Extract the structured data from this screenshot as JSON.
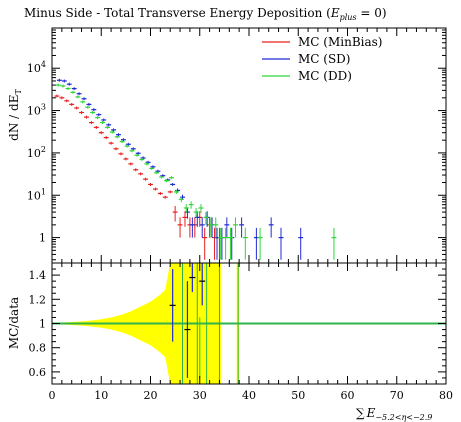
{
  "chart_data": {
    "type": "scatter",
    "title_prefix": "Minus Side - Total Transverse Energy Deposition (",
    "title_math_E": "E",
    "title_math_sub": "plus",
    "title_math_suffix": " = 0)",
    "xlabel_sym": "∑",
    "xlabel_E": "E",
    "xlabel_sub": "−5.2<η<−2.9",
    "top_ylabel": "dN / dE",
    "top_ylabel_sub": "T",
    "bottom_ylabel": "MC/data",
    "xlim": [
      0,
      80
    ],
    "top_ylim_log10": [
      -0.6,
      4.95
    ],
    "top_yscale": "log",
    "bottom_ylim": [
      0.5,
      1.5
    ],
    "x_tick_labels": [
      "0",
      "10",
      "20",
      "30",
      "40",
      "50",
      "60",
      "70",
      "80"
    ],
    "top_y_tick_labels": [
      {
        "value": 1,
        "label": "1"
      },
      {
        "value": 10,
        "label": "10",
        "sup": "1"
      },
      {
        "value": 100,
        "label": "10",
        "sup": "2"
      },
      {
        "value": 1000,
        "label": "10",
        "sup": "3"
      },
      {
        "value": 10000,
        "label": "10",
        "sup": "4"
      }
    ],
    "bottom_y_tick_labels": [
      "0.6",
      "0.8",
      "1",
      "1.2",
      "1.4"
    ],
    "legend_position": "top-right",
    "series": [
      {
        "name": "MC (MinBias)",
        "color": "#e8211f",
        "points": [
          [
            1,
            2200
          ],
          [
            2,
            2000
          ],
          [
            3,
            1700
          ],
          [
            4,
            1400
          ],
          [
            5,
            1150
          ],
          [
            6,
            900
          ],
          [
            7,
            700
          ],
          [
            8,
            520
          ],
          [
            9,
            400
          ],
          [
            10,
            300
          ],
          [
            11,
            230
          ],
          [
            12,
            170
          ],
          [
            13,
            125
          ],
          [
            14,
            95
          ],
          [
            15,
            72
          ],
          [
            16,
            55
          ],
          [
            17,
            40
          ],
          [
            18,
            32
          ],
          [
            19,
            24
          ],
          [
            20,
            18
          ],
          [
            21,
            14
          ],
          [
            22,
            11
          ],
          [
            23,
            9
          ],
          [
            24,
            12
          ],
          [
            25,
            4
          ],
          [
            26,
            2
          ],
          [
            27,
            3
          ],
          [
            28,
            2
          ],
          [
            29,
            2
          ],
          [
            30,
            3
          ],
          [
            31,
            1
          ],
          [
            32,
            2
          ],
          [
            33,
            1
          ],
          [
            34,
            1
          ]
        ],
        "errors": [
          0,
          0,
          0,
          0,
          0,
          0,
          0,
          0,
          0,
          0,
          0,
          0,
          0,
          0,
          0,
          0,
          0,
          0,
          0,
          0,
          0,
          0,
          0,
          0,
          1.6,
          1,
          1.2,
          1,
          1,
          1.2,
          0.7,
          1,
          0.7,
          0.7
        ]
      },
      {
        "name": "MC (SD)",
        "color": "#1f2bd6",
        "points": [
          [
            1,
            5200
          ],
          [
            2,
            5000
          ],
          [
            3,
            4200
          ],
          [
            4,
            3300
          ],
          [
            5,
            2500
          ],
          [
            6,
            1900
          ],
          [
            7,
            1400
          ],
          [
            8,
            1050
          ],
          [
            9,
            800
          ],
          [
            10,
            600
          ],
          [
            11,
            460
          ],
          [
            12,
            350
          ],
          [
            13,
            270
          ],
          [
            14,
            205
          ],
          [
            15,
            160
          ],
          [
            16,
            125
          ],
          [
            17,
            98
          ],
          [
            18,
            76
          ],
          [
            19,
            60
          ],
          [
            20,
            47
          ],
          [
            21,
            37
          ],
          [
            22,
            29
          ],
          [
            23,
            23
          ],
          [
            24,
            18
          ],
          [
            25,
            13
          ],
          [
            26,
            9
          ],
          [
            27,
            4
          ],
          [
            28,
            2
          ],
          [
            29,
            3
          ],
          [
            30,
            2
          ],
          [
            31,
            3
          ],
          [
            32,
            2
          ],
          [
            33,
            1
          ],
          [
            34,
            1
          ],
          [
            35,
            2
          ],
          [
            36,
            1
          ],
          [
            38,
            2
          ],
          [
            41,
            1
          ],
          [
            44,
            2
          ],
          [
            46,
            1
          ],
          [
            50,
            1
          ]
        ],
        "errors": [
          0,
          0,
          0,
          0,
          0,
          0,
          0,
          0,
          0,
          0,
          0,
          0,
          0,
          0,
          0,
          0,
          0,
          0,
          0,
          0,
          0,
          0,
          0,
          0,
          1.5,
          1.3,
          1.2,
          1,
          1.2,
          1,
          1.2,
          1,
          0.7,
          0.7,
          1,
          0.7,
          1,
          0.7,
          1,
          0.7,
          0.7
        ]
      },
      {
        "name": "MC (DD)",
        "color": "#2fd63a",
        "points": [
          [
            1,
            4000
          ],
          [
            2,
            3800
          ],
          [
            3,
            3300
          ],
          [
            4,
            2700
          ],
          [
            5,
            2100
          ],
          [
            6,
            1600
          ],
          [
            7,
            1200
          ],
          [
            8,
            900
          ],
          [
            9,
            680
          ],
          [
            10,
            520
          ],
          [
            11,
            400
          ],
          [
            12,
            310
          ],
          [
            13,
            240
          ],
          [
            14,
            185
          ],
          [
            15,
            145
          ],
          [
            16,
            112
          ],
          [
            17,
            88
          ],
          [
            18,
            70
          ],
          [
            19,
            55
          ],
          [
            20,
            43
          ],
          [
            21,
            34
          ],
          [
            22,
            27
          ],
          [
            23,
            22
          ],
          [
            24,
            26
          ],
          [
            25,
            12
          ],
          [
            26,
            8
          ],
          [
            27,
            5
          ],
          [
            28,
            6
          ],
          [
            29,
            4
          ],
          [
            30,
            5
          ],
          [
            31,
            3
          ],
          [
            32,
            2
          ],
          [
            33,
            2
          ],
          [
            34,
            1
          ],
          [
            35,
            1
          ],
          [
            36,
            1
          ],
          [
            37,
            2
          ],
          [
            39,
            1
          ],
          [
            42,
            1
          ],
          [
            57,
            1
          ]
        ],
        "errors": [
          0,
          0,
          0,
          0,
          0,
          0,
          0,
          0,
          0,
          0,
          0,
          0,
          0,
          0,
          0,
          0,
          0,
          0,
          0,
          0,
          0,
          0,
          0,
          0,
          1.3,
          1.2,
          1.2,
          1.2,
          1,
          1.2,
          1,
          1,
          1,
          0.7,
          0.7,
          0.7,
          1,
          0.7,
          0.7,
          0.7
        ]
      }
    ],
    "ratio": {
      "band_color": "#ffff00",
      "line_color": "#2fb34a",
      "band_halfwidth": [
        [
          0,
          0.005
        ],
        [
          2,
          0.008
        ],
        [
          4,
          0.012
        ],
        [
          6,
          0.018
        ],
        [
          8,
          0.025
        ],
        [
          10,
          0.035
        ],
        [
          12,
          0.05
        ],
        [
          14,
          0.07
        ],
        [
          16,
          0.1
        ],
        [
          18,
          0.14
        ],
        [
          20,
          0.18
        ],
        [
          22,
          0.24
        ],
        [
          23,
          0.28
        ],
        [
          24,
          0.5
        ],
        [
          25,
          0.5
        ],
        [
          26,
          0.5
        ],
        [
          27,
          0.5
        ],
        [
          28,
          0.5
        ],
        [
          29,
          0.5
        ],
        [
          30,
          0.5
        ],
        [
          31,
          0.5
        ],
        [
          32,
          0.5
        ],
        [
          33,
          0.5
        ],
        [
          34,
          0.5
        ]
      ],
      "spikes": [
        {
          "x0": 26.2,
          "x1": 26.8
        },
        {
          "x0": 29.2,
          "x1": 29.8
        },
        {
          "x0": 31.1,
          "x1": 31.7
        },
        {
          "x0": 33.7,
          "x1": 34.3
        },
        {
          "x0": 37.5,
          "x1": 38.0
        }
      ],
      "blue_points": [
        {
          "x": 24.5,
          "y": 1.15,
          "e": 0.3
        },
        {
          "x": 27.5,
          "y": 0.95,
          "e": 0.4
        },
        {
          "x": 30.5,
          "y": 1.35,
          "e": 0.2
        },
        {
          "x": 28.5,
          "y": 1.38,
          "e": 0.12
        }
      ],
      "green_points": [
        {
          "x": 30.0,
          "y": 0.8,
          "e": 0.25
        }
      ]
    }
  }
}
